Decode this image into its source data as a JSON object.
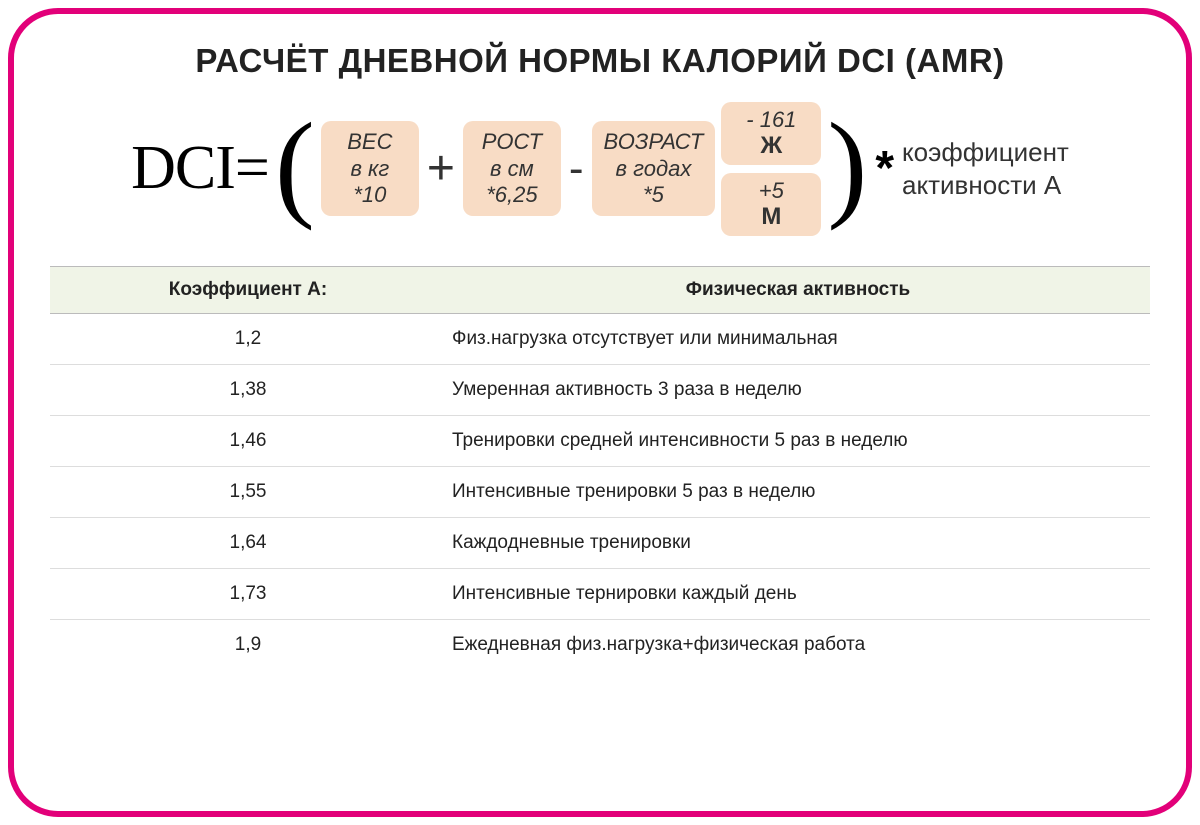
{
  "title": "РАСЧЁТ ДНЕВНОЙ НОРМЫ КАЛОРИЙ DCI (AMR)",
  "colors": {
    "frame_border": "#e20079",
    "term_bg": "#f8dcc5",
    "table_header_bg": "#f0f4e7"
  },
  "formula": {
    "lhs": "DCI=",
    "paren_open": "(",
    "terms": {
      "weight": {
        "l1": "ВЕС",
        "l2": "в кг",
        "l3": "*10"
      },
      "height": {
        "l1": "РОСТ",
        "l2": "в см",
        "l3": "*6,25"
      },
      "age": {
        "l1": "ВОЗРАСТ",
        "l2": "в годах",
        "l3": "*5"
      }
    },
    "ops": {
      "plus": "+",
      "minus": "-",
      "star": "*"
    },
    "gender": {
      "female": {
        "value": "- 161",
        "letter": "Ж"
      },
      "male": {
        "value": "+5",
        "letter": "М"
      }
    },
    "paren_close": ")",
    "suffix": {
      "l1": "коэффициент",
      "l2": "активности А"
    }
  },
  "table": {
    "headers": {
      "a": "Коэффициент А:",
      "b": "Физическая активность"
    },
    "rows": [
      {
        "a": "1,2",
        "b": "Физ.нагрузка отсутствует или минимальная"
      },
      {
        "a": "1,38",
        "b": "Умеренная активность 3 раза в неделю"
      },
      {
        "a": "1,46",
        "b": "Тренировки средней интенсивности 5 раз  в неделю"
      },
      {
        "a": "1,55",
        "b": "Интенсивные тренировки 5 раз в неделю"
      },
      {
        "a": "1,64",
        "b": "Каждодневные тренировки"
      },
      {
        "a": "1,73",
        "b": "Интенсивные тернировки каждый день"
      },
      {
        "a": "1,9",
        "b": "Ежедневная физ.нагрузка+физическая работа"
      }
    ]
  }
}
